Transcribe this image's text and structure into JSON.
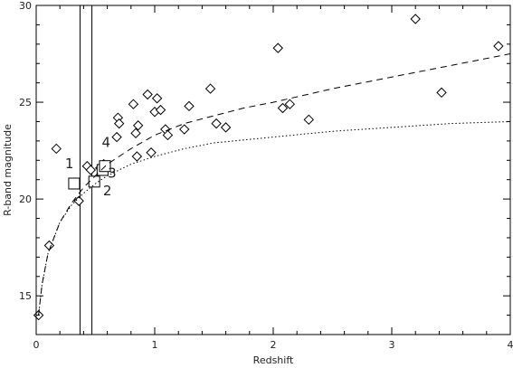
{
  "chart_data": {
    "type": "scatter",
    "title": "",
    "xlabel": "Redshift",
    "ylabel": "R-band magnitude",
    "xlim": [
      0,
      4.0
    ],
    "ylim": [
      13,
      30
    ],
    "xticks": [
      0,
      1,
      2,
      3,
      4
    ],
    "yticks": [
      15,
      20,
      25,
      30
    ],
    "grid": false,
    "series": [
      {
        "marker": "diamond",
        "points": [
          [
            0.02,
            14.0
          ],
          [
            0.11,
            17.6
          ],
          [
            0.17,
            22.6
          ],
          [
            0.36,
            19.9
          ],
          [
            0.43,
            21.7
          ],
          [
            0.46,
            21.5
          ],
          [
            0.54,
            21.6
          ],
          [
            0.57,
            21.8
          ],
          [
            0.68,
            23.2
          ],
          [
            0.69,
            24.2
          ],
          [
            0.7,
            23.9
          ],
          [
            0.82,
            24.9
          ],
          [
            0.84,
            23.4
          ],
          [
            0.85,
            22.2
          ],
          [
            0.86,
            23.8
          ],
          [
            0.94,
            25.4
          ],
          [
            0.97,
            22.4
          ],
          [
            1.0,
            24.5
          ],
          [
            1.02,
            25.2
          ],
          [
            1.05,
            24.6
          ],
          [
            1.09,
            23.6
          ],
          [
            1.11,
            23.3
          ],
          [
            1.25,
            23.6
          ],
          [
            1.29,
            24.8
          ],
          [
            1.47,
            25.7
          ],
          [
            1.52,
            23.9
          ],
          [
            1.6,
            23.7
          ],
          [
            2.04,
            27.8
          ],
          [
            2.08,
            24.7
          ],
          [
            2.14,
            24.9
          ],
          [
            2.3,
            24.1
          ],
          [
            3.2,
            29.3
          ],
          [
            3.42,
            25.5
          ],
          [
            3.9,
            27.9
          ]
        ]
      },
      {
        "marker": "square",
        "points": [
          [
            0.32,
            20.8
          ],
          [
            0.49,
            20.9
          ],
          [
            0.56,
            21.5
          ],
          [
            0.58,
            21.7
          ]
        ]
      },
      {
        "style": "dashed",
        "curve": [
          [
            0.02,
            14.0
          ],
          [
            0.05,
            15.6
          ],
          [
            0.1,
            17.2
          ],
          [
            0.2,
            18.8
          ],
          [
            0.3,
            19.8
          ],
          [
            0.4,
            20.6
          ],
          [
            0.5,
            21.2
          ],
          [
            0.6,
            21.8
          ],
          [
            0.7,
            22.2
          ],
          [
            0.8,
            22.6
          ],
          [
            1.0,
            23.3
          ],
          [
            1.25,
            23.9
          ],
          [
            1.5,
            24.3
          ],
          [
            1.75,
            24.7
          ],
          [
            2.0,
            25.0
          ],
          [
            2.5,
            25.7
          ],
          [
            3.0,
            26.3
          ],
          [
            3.5,
            26.9
          ],
          [
            4.0,
            27.5
          ]
        ]
      },
      {
        "style": "dotted",
        "curve": [
          [
            0.02,
            14.0
          ],
          [
            0.05,
            15.6
          ],
          [
            0.1,
            17.2
          ],
          [
            0.2,
            18.8
          ],
          [
            0.3,
            19.7
          ],
          [
            0.4,
            20.3
          ],
          [
            0.5,
            20.8
          ],
          [
            0.6,
            21.2
          ],
          [
            0.8,
            21.8
          ],
          [
            1.0,
            22.2
          ],
          [
            1.25,
            22.6
          ],
          [
            1.5,
            22.9
          ],
          [
            2.0,
            23.2
          ],
          [
            2.5,
            23.5
          ],
          [
            3.0,
            23.7
          ],
          [
            3.5,
            23.9
          ],
          [
            4.0,
            24.0
          ]
        ]
      }
    ],
    "vertical_lines": [
      0.37,
      0.47
    ],
    "annotations": [
      {
        "text": "1",
        "x": 0.28,
        "y": 21.6
      },
      {
        "text": "2",
        "x": 0.6,
        "y": 20.2
      },
      {
        "text": "3",
        "x": 0.64,
        "y": 21.1
      },
      {
        "text": "4",
        "x": 0.59,
        "y": 22.7
      }
    ]
  }
}
